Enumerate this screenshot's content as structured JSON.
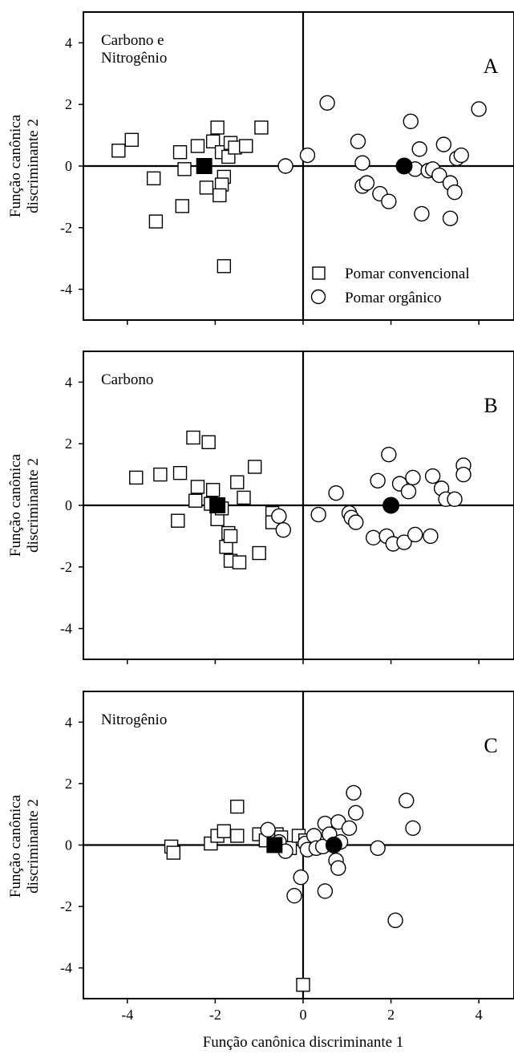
{
  "figure": {
    "xlabel": "Função canônica discriminante 1",
    "ylabel_line1": "Função canônica",
    "ylabel_line2": "discriminante 2",
    "legend": {
      "conventional": "Pomar convencional",
      "organic": "Pomar orgânico"
    }
  },
  "chart_data": [
    {
      "type": "scatter",
      "panel": "A",
      "title_lines": [
        "Carbono e",
        "Nitrogênio"
      ],
      "xlim": [
        -5,
        4.8
      ],
      "ylim": [
        -5,
        5
      ],
      "xticks": [
        -4,
        -2,
        0,
        2,
        4
      ],
      "yticks": [
        -4,
        -2,
        0,
        2,
        4
      ],
      "xtick_labels_shown": false,
      "legend_placement": "bottom-right",
      "series": [
        {
          "name": "Pomar convencional",
          "marker": "open-square",
          "points": [
            [
              -4.2,
              0.5
            ],
            [
              -3.9,
              0.85
            ],
            [
              -3.4,
              -0.4
            ],
            [
              -3.35,
              -1.8
            ],
            [
              -2.8,
              0.45
            ],
            [
              -2.7,
              -0.1
            ],
            [
              -2.75,
              -1.3
            ],
            [
              -2.4,
              0.65
            ],
            [
              -2.2,
              -0.7
            ],
            [
              -2.05,
              0.8
            ],
            [
              -1.95,
              1.25
            ],
            [
              -1.85,
              0.45
            ],
            [
              -1.8,
              -0.35
            ],
            [
              -1.85,
              -0.6
            ],
            [
              -1.9,
              -0.95
            ],
            [
              -1.7,
              0.3
            ],
            [
              -1.65,
              0.75
            ],
            [
              -1.55,
              0.6
            ],
            [
              -1.3,
              0.65
            ],
            [
              -0.95,
              1.25
            ],
            [
              -1.8,
              -3.25
            ]
          ]
        },
        {
          "name": "Pomar orgânico",
          "marker": "open-circle",
          "points": [
            [
              -0.4,
              0.0
            ],
            [
              0.1,
              0.35
            ],
            [
              0.55,
              2.05
            ],
            [
              1.25,
              0.8
            ],
            [
              1.35,
              0.1
            ],
            [
              1.35,
              -0.65
            ],
            [
              1.45,
              -0.55
            ],
            [
              1.75,
              -0.9
            ],
            [
              1.95,
              -1.15
            ],
            [
              2.45,
              1.45
            ],
            [
              2.55,
              -0.1
            ],
            [
              2.65,
              0.55
            ],
            [
              2.7,
              -1.55
            ],
            [
              2.85,
              -0.15
            ],
            [
              2.95,
              -0.1
            ],
            [
              3.1,
              -0.3
            ],
            [
              3.2,
              0.7
            ],
            [
              3.35,
              -0.55
            ],
            [
              3.35,
              -1.7
            ],
            [
              3.45,
              -0.85
            ],
            [
              3.5,
              0.25
            ],
            [
              3.6,
              0.35
            ],
            [
              4.0,
              1.85
            ]
          ]
        },
        {
          "name": "centroid-conventional",
          "marker": "filled-square",
          "points": [
            [
              -2.25,
              0.0
            ]
          ]
        },
        {
          "name": "centroid-organic",
          "marker": "filled-circle",
          "points": [
            [
              2.3,
              0.0
            ]
          ]
        }
      ]
    },
    {
      "type": "scatter",
      "panel": "B",
      "title_lines": [
        "Carbono"
      ],
      "xlim": [
        -5,
        4.8
      ],
      "ylim": [
        -5,
        5
      ],
      "xticks": [
        -4,
        -2,
        0,
        2,
        4
      ],
      "yticks": [
        -4,
        -2,
        0,
        2,
        4
      ],
      "xtick_labels_shown": false,
      "series": [
        {
          "name": "Pomar convencional",
          "marker": "open-square",
          "points": [
            [
              -3.8,
              0.9
            ],
            [
              -3.25,
              1.0
            ],
            [
              -2.8,
              1.05
            ],
            [
              -2.85,
              -0.5
            ],
            [
              -2.5,
              2.2
            ],
            [
              -2.4,
              0.6
            ],
            [
              -2.45,
              0.15
            ],
            [
              -2.15,
              2.05
            ],
            [
              -2.1,
              0.05
            ],
            [
              -2.05,
              0.5
            ],
            [
              -1.95,
              -0.45
            ],
            [
              -1.85,
              -0.1
            ],
            [
              -1.75,
              -1.35
            ],
            [
              -1.7,
              -0.9
            ],
            [
              -1.65,
              -1.0
            ],
            [
              -1.65,
              -1.8
            ],
            [
              -1.5,
              0.75
            ],
            [
              -1.45,
              -1.85
            ],
            [
              -1.35,
              0.25
            ],
            [
              -1.1,
              1.25
            ],
            [
              -1.0,
              -1.55
            ],
            [
              -0.7,
              -0.25
            ],
            [
              -0.7,
              -0.55
            ]
          ]
        },
        {
          "name": "Pomar orgânico",
          "marker": "open-circle",
          "points": [
            [
              -0.55,
              -0.35
            ],
            [
              -0.45,
              -0.8
            ],
            [
              0.35,
              -0.3
            ],
            [
              0.75,
              0.4
            ],
            [
              1.05,
              -0.25
            ],
            [
              1.1,
              -0.4
            ],
            [
              1.2,
              -0.55
            ],
            [
              1.6,
              -1.05
            ],
            [
              1.7,
              0.8
            ],
            [
              1.9,
              -1.0
            ],
            [
              1.95,
              1.65
            ],
            [
              2.05,
              -1.25
            ],
            [
              2.2,
              0.7
            ],
            [
              2.3,
              -1.2
            ],
            [
              2.4,
              0.45
            ],
            [
              2.5,
              0.9
            ],
            [
              2.55,
              -0.95
            ],
            [
              2.9,
              -1.0
            ],
            [
              2.95,
              0.95
            ],
            [
              3.15,
              0.55
            ],
            [
              3.25,
              0.2
            ],
            [
              3.45,
              0.2
            ],
            [
              3.65,
              1.3
            ],
            [
              3.65,
              1.0
            ]
          ]
        },
        {
          "name": "centroid-conventional",
          "marker": "filled-square",
          "points": [
            [
              -1.95,
              0.0
            ]
          ]
        },
        {
          "name": "centroid-organic",
          "marker": "filled-circle",
          "points": [
            [
              2.0,
              0.0
            ]
          ]
        }
      ]
    },
    {
      "type": "scatter",
      "panel": "C",
      "title_lines": [
        "Nitrogênio"
      ],
      "xlim": [
        -5,
        4.8
      ],
      "ylim": [
        -5,
        5
      ],
      "xticks": [
        -4,
        -2,
        0,
        2,
        4
      ],
      "yticks": [
        -4,
        -2,
        0,
        2,
        4
      ],
      "xtick_labels_shown": true,
      "series": [
        {
          "name": "Pomar convencional",
          "marker": "open-square",
          "points": [
            [
              -3.0,
              -0.05
            ],
            [
              -2.95,
              -0.25
            ],
            [
              -2.1,
              0.05
            ],
            [
              -1.95,
              0.3
            ],
            [
              -1.8,
              0.45
            ],
            [
              -1.5,
              0.3
            ],
            [
              -1.5,
              1.25
            ],
            [
              -1.0,
              0.35
            ],
            [
              -0.85,
              0.15
            ],
            [
              -0.6,
              0.35
            ],
            [
              -0.5,
              0.25
            ],
            [
              -0.3,
              -0.1
            ],
            [
              -0.1,
              0.3
            ],
            [
              0.05,
              0.15
            ],
            [
              0.0,
              -4.55
            ]
          ]
        },
        {
          "name": "Pomar orgânico",
          "marker": "open-circle",
          "points": [
            [
              -0.8,
              0.5
            ],
            [
              -0.55,
              0.1
            ],
            [
              -0.4,
              -0.2
            ],
            [
              -0.2,
              -1.65
            ],
            [
              -0.05,
              -1.05
            ],
            [
              0.05,
              0.05
            ],
            [
              0.1,
              -0.15
            ],
            [
              0.25,
              0.3
            ],
            [
              0.3,
              -0.1
            ],
            [
              0.45,
              -0.05
            ],
            [
              0.5,
              0.7
            ],
            [
              0.5,
              -1.5
            ],
            [
              0.6,
              0.35
            ],
            [
              0.75,
              -0.5
            ],
            [
              0.8,
              -0.75
            ],
            [
              0.8,
              0.75
            ],
            [
              0.85,
              0.1
            ],
            [
              1.05,
              0.55
            ],
            [
              1.15,
              1.7
            ],
            [
              1.2,
              1.05
            ],
            [
              1.7,
              -0.1
            ],
            [
              2.1,
              -2.45
            ],
            [
              2.35,
              1.45
            ],
            [
              2.5,
              0.55
            ]
          ]
        },
        {
          "name": "centroid-conventional",
          "marker": "filled-square",
          "points": [
            [
              -0.65,
              0.0
            ]
          ]
        },
        {
          "name": "centroid-organic",
          "marker": "filled-circle",
          "points": [
            [
              0.7,
              0.0
            ]
          ]
        }
      ]
    }
  ]
}
